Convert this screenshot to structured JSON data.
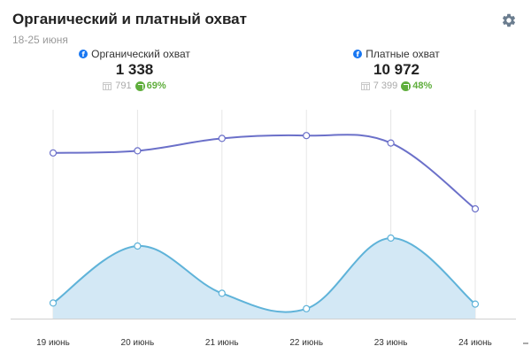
{
  "header": {
    "title": "Органический и платный охват",
    "date_range": "18-25 июня",
    "settings_icon": "gear-icon"
  },
  "kpis": [
    {
      "label": "Органический охват",
      "value": "1 338",
      "previous": "791",
      "change": "69%",
      "icon": "facebook-icon"
    },
    {
      "label": "Платные охват",
      "value": "10 972",
      "previous": "7 399",
      "change": "48%",
      "icon": "facebook-icon"
    }
  ],
  "colors": {
    "top_line": "#6b70c9",
    "area_line": "#5fb3d9",
    "area_fill": "#d3e8f5",
    "change_positive": "#5fae3c",
    "facebook": "#1877f2"
  },
  "chart_data": {
    "type": "line",
    "categories": [
      "19 июнь",
      "20 июнь",
      "21 июнь",
      "22 июнь",
      "23 июнь",
      "24 июнь"
    ],
    "series": [
      {
        "style": "line",
        "values": [
          9360,
          9480,
          10180,
          10340,
          9920,
          6200
        ]
      },
      {
        "style": "area",
        "values": [
          880,
          4100,
          1430,
          560,
          4550,
          820
        ]
      }
    ],
    "ylim": [
      0,
      12000
    ],
    "grid": "vertical",
    "legend": "none"
  }
}
